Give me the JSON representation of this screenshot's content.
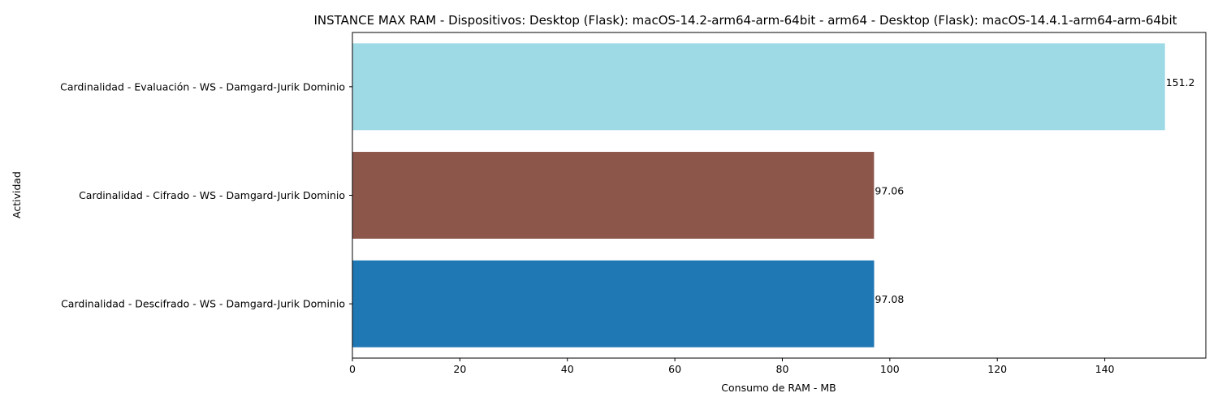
{
  "chart_data": {
    "type": "bar",
    "orientation": "horizontal",
    "title": "INSTANCE MAX RAM - Dispositivos: Desktop (Flask): macOS-14.2-arm64-arm-64bit - arm64 - Desktop (Flask): macOS-14.4.1-arm64-arm-64bit",
    "xlabel": "Consumo de RAM - MB",
    "ylabel": "Actividad",
    "xlim": [
      0,
      158.8
    ],
    "xticks": [
      0,
      20,
      40,
      60,
      80,
      100,
      120,
      140
    ],
    "grid": false,
    "categories": [
      "Cardinalidad - Evaluación - WS - Damgard-Jurik Dominio",
      "Cardinalidad - Cifrado - WS - Damgard-Jurik Dominio",
      "Cardinalidad - Descifrado - WS - Damgard-Jurik Dominio"
    ],
    "values": [
      151.2,
      97.06,
      97.08
    ],
    "value_labels": [
      "151.2",
      "97.06",
      "97.08"
    ],
    "colors": [
      "#9edae5",
      "#8c564b",
      "#1f77b4"
    ]
  }
}
